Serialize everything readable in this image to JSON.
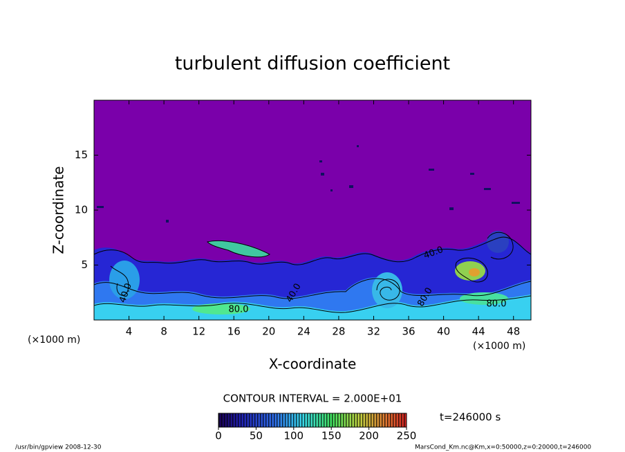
{
  "chart_data": {
    "type": "contour",
    "title": "turbulent diffusion coefficient",
    "xlabel": "X-coordinate",
    "ylabel": "Z-coordinate",
    "x_unit_label": "(×1000 m)",
    "xlim": [
      0,
      50
    ],
    "xticks": [
      4,
      8,
      12,
      16,
      20,
      24,
      28,
      32,
      36,
      40,
      44,
      48
    ],
    "ylim": [
      0,
      20
    ],
    "yticks": [
      5,
      10,
      15
    ],
    "contour_labels": [
      "80.0",
      "40.0",
      "40.0",
      "80.0",
      "40.0",
      "80.0"
    ],
    "contour_interval_label": "CONTOUR INTERVAL = 2.000E+01",
    "time_label": "t=246000 s",
    "colorbar": {
      "lim": [
        0,
        250
      ],
      "ticks": [
        0,
        50,
        100,
        150,
        200,
        250
      ]
    },
    "footer_left": "/usr/bin/gpview   2008-12-30",
    "footer_right": "MarsCond_Km.nc@Km,x=0:50000,z=0:20000,t=246000"
  }
}
